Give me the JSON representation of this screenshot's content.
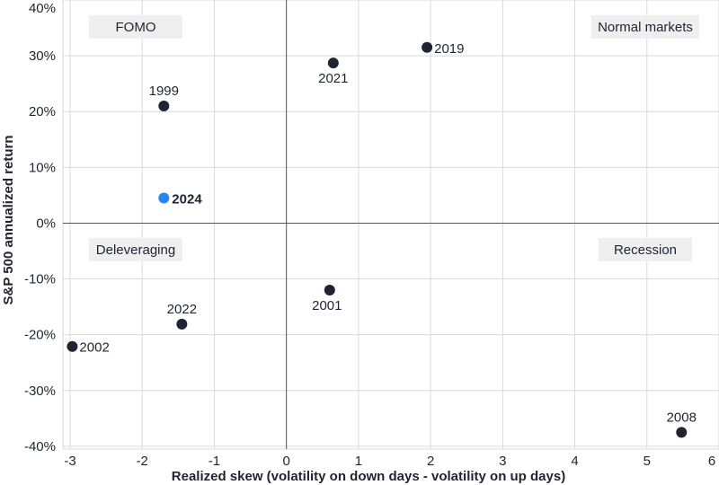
{
  "chart_data": {
    "type": "scatter",
    "xlabel": "Realized skew (volatility on down days - volatility on up days)",
    "ylabel": "S&P 500 annualized return",
    "xlim": [
      -3.1,
      6.0
    ],
    "ylim": [
      -40.5,
      40
    ],
    "x_ticks": [
      -3,
      -2,
      -1,
      0,
      1,
      2,
      3,
      4,
      5,
      6
    ],
    "y_ticks": [
      40,
      30,
      20,
      10,
      0,
      -10,
      -20,
      -30,
      -40
    ],
    "x_tick_labels": [
      "-3",
      "-2",
      "-1",
      "0",
      "1",
      "2",
      "3",
      "4",
      "5",
      "6"
    ],
    "y_tick_labels": [
      "40%",
      "30%",
      "20%",
      "10%",
      "0%",
      "-10%",
      "-20%",
      "-30%",
      "-40%"
    ],
    "grid": true,
    "points": [
      {
        "label": "1999",
        "x": -1.7,
        "y": 21.0,
        "color": "#1f2433",
        "highlight": false
      },
      {
        "label": "2024",
        "x": -1.7,
        "y": 4.5,
        "color": "#2a86f5",
        "highlight": true
      },
      {
        "label": "2021",
        "x": 0.65,
        "y": 28.7,
        "color": "#1f2433",
        "highlight": false
      },
      {
        "label": "2019",
        "x": 1.95,
        "y": 31.5,
        "color": "#1f2433",
        "highlight": false
      },
      {
        "label": "2001",
        "x": 0.6,
        "y": -12.0,
        "color": "#1f2433",
        "highlight": false
      },
      {
        "label": "2022",
        "x": -1.45,
        "y": -18.1,
        "color": "#1f2433",
        "highlight": false
      },
      {
        "label": "2002",
        "x": -2.97,
        "y": -22.1,
        "color": "#1f2433",
        "highlight": false
      },
      {
        "label": "2008",
        "x": 5.48,
        "y": -37.5,
        "color": "#1f2433",
        "highlight": false
      }
    ],
    "quadrant_labels": [
      "FOMO",
      "Normal markets",
      "Deleveraging",
      "Recession"
    ],
    "colors": {
      "point": "#1f2433",
      "highlight": "#2a86f5",
      "grid": "#d9d9d9",
      "axis": "#555555",
      "box": "#efefef"
    }
  }
}
